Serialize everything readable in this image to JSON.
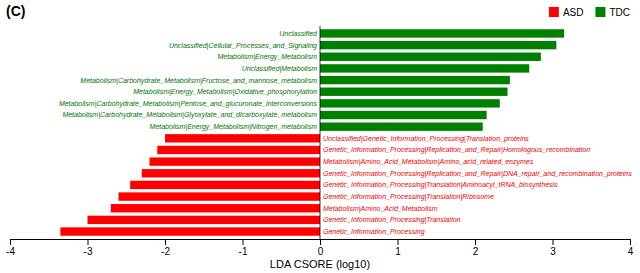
{
  "chart_data": {
    "type": "bar",
    "orientation": "horizontal",
    "title": "(C)",
    "xlabel": "LDA CSORE (log10)",
    "categories": [
      "Unclassified",
      "Unclassified|Cellular_Processes_and_Signaling",
      "Metabolism|Energy_Metabolism",
      "Unclassified|Metabolism",
      "Metabolism|Carbohydrate_Metabolism|Fructose_and_mannose_metabolism",
      "Metabolism|Energy_Metabolism|Oxidative_phosphorylation",
      "Metabolism|Carbohydrate_Metabolism|Pentose_and_glucuronate_interconversions",
      "Metabolism|Carbohydrate_Metabolism|Glyoxylate_and_dicarboxylate_metabolism",
      "Metabolism|Energy_Metabolism|Nitrogen_metabolism",
      "Unclassified|Genetic_Information_Processing|Translation_proteins",
      "Genetic_Information_Processing|Replication_and_Repair|Homologous_recombination",
      "Metabolism|Amino_Acid_Metabolism|Amino_acid_related_enzymes",
      "Genetic_Information_Processing|Replication_and_Repair|DNA_repair_and_recombination_proteins",
      "Genetic_Information_Processing|Translation|Aminoacyl_tRNA_biosynthesis",
      "Genetic_Information_Processing|Translation|Ribosome",
      "Metabolism|Amino_Acid_Metabolism",
      "Genetic_Information_Processing|Translation",
      "Genetic_Information_Processing"
    ],
    "series": [
      {
        "name": "ASD",
        "color": "#ff0000",
        "values": [
          null,
          null,
          null,
          null,
          null,
          null,
          null,
          null,
          null,
          -2.0,
          -2.1,
          -2.2,
          -2.3,
          -2.45,
          -2.6,
          -2.7,
          -3.0,
          -3.35
        ]
      },
      {
        "name": "TDC",
        "color": "#008000",
        "values": [
          3.15,
          3.05,
          2.85,
          2.7,
          2.45,
          2.42,
          2.32,
          2.15,
          2.1,
          null,
          null,
          null,
          null,
          null,
          null,
          null,
          null,
          null
        ]
      }
    ],
    "xlim": [
      -4,
      4
    ],
    "xticks": [
      -4,
      -3,
      -2,
      -1,
      0,
      1,
      2,
      3,
      4
    ],
    "legend": "upper right",
    "grid": false
  }
}
